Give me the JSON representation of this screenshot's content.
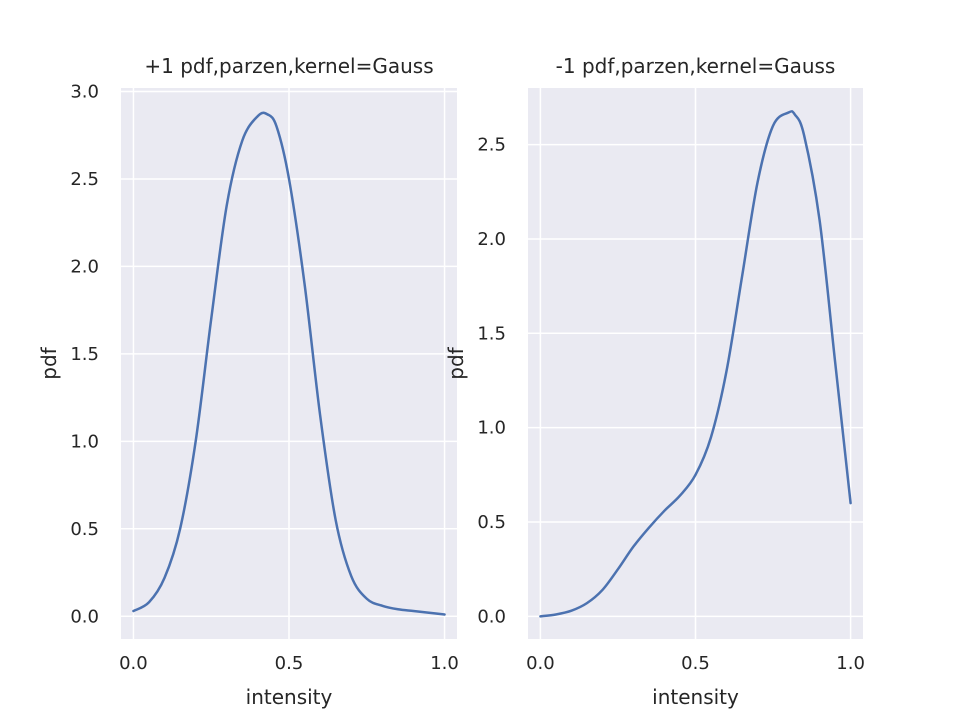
{
  "chart_data": [
    {
      "type": "line",
      "title": "+1 pdf,parzen,kernel=Gauss",
      "xlabel": "intensity",
      "ylabel": "pdf",
      "xlim": [
        -0.04,
        1.04
      ],
      "ylim": [
        -0.13,
        3.02
      ],
      "xticks": [
        0.0,
        0.5,
        1.0
      ],
      "xtick_labels": [
        "0.0",
        "0.5",
        "1.0"
      ],
      "yticks": [
        0.0,
        0.5,
        1.0,
        1.5,
        2.0,
        2.5,
        3.0
      ],
      "ytick_labels": [
        "0.0",
        "0.5",
        "1.0",
        "1.5",
        "2.0",
        "2.5",
        "3.0"
      ],
      "grid": true,
      "color": "#4c72b0",
      "series": [
        {
          "x": [
            0.0,
            0.05,
            0.1,
            0.15,
            0.2,
            0.25,
            0.3,
            0.35,
            0.4,
            0.43,
            0.46,
            0.5,
            0.55,
            0.6,
            0.65,
            0.7,
            0.75,
            0.8,
            0.85,
            0.9,
            0.95,
            1.0
          ],
          "y": [
            0.03,
            0.08,
            0.22,
            0.5,
            1.0,
            1.7,
            2.35,
            2.72,
            2.86,
            2.87,
            2.8,
            2.5,
            1.9,
            1.15,
            0.55,
            0.23,
            0.1,
            0.06,
            0.04,
            0.03,
            0.02,
            0.01
          ]
        }
      ]
    },
    {
      "type": "line",
      "title": "-1 pdf,parzen,kernel=Gauss",
      "xlabel": "intensity",
      "ylabel": "pdf",
      "xlim": [
        -0.04,
        1.04
      ],
      "ylim": [
        -0.12,
        2.8
      ],
      "xticks": [
        0.0,
        0.5,
        1.0
      ],
      "xtick_labels": [
        "0.0",
        "0.5",
        "1.0"
      ],
      "yticks": [
        0.0,
        0.5,
        1.0,
        1.5,
        2.0,
        2.5
      ],
      "ytick_labels": [
        "0.0",
        "0.5",
        "1.0",
        "1.5",
        "2.0",
        "2.5"
      ],
      "grid": true,
      "color": "#4c72b0",
      "series": [
        {
          "x": [
            0.0,
            0.05,
            0.1,
            0.15,
            0.2,
            0.25,
            0.3,
            0.35,
            0.4,
            0.45,
            0.5,
            0.55,
            0.6,
            0.65,
            0.7,
            0.75,
            0.8,
            0.82,
            0.85,
            0.9,
            0.95,
            1.0
          ],
          "y": [
            0.0,
            0.01,
            0.03,
            0.07,
            0.14,
            0.25,
            0.37,
            0.47,
            0.56,
            0.64,
            0.75,
            0.95,
            1.3,
            1.8,
            2.3,
            2.6,
            2.67,
            2.66,
            2.55,
            2.1,
            1.35,
            0.6
          ]
        }
      ]
    }
  ]
}
